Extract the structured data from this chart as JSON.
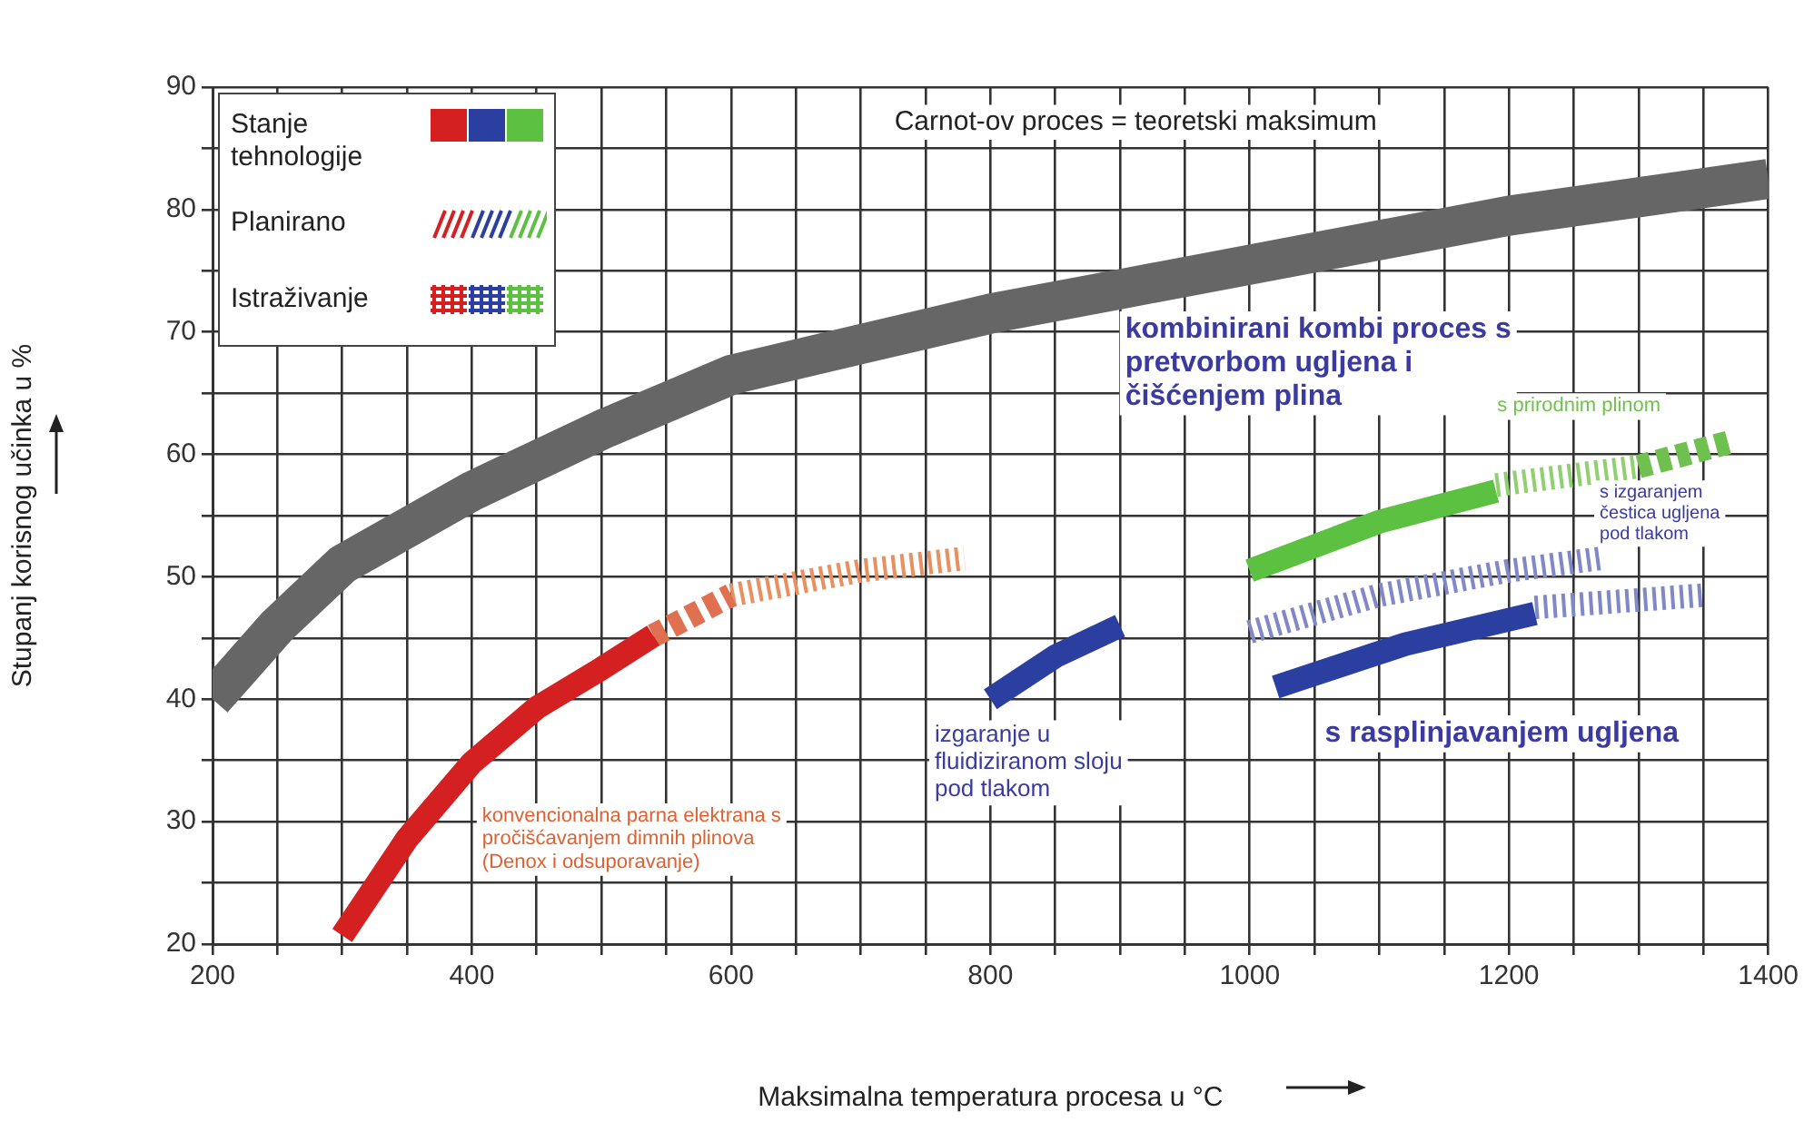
{
  "chart_data": {
    "type": "line",
    "xlabel": "Maksimalna temperatura procesa u °C",
    "ylabel": "Stupanj korisnog učinka u %",
    "xlim": [
      200,
      1400
    ],
    "ylim": [
      20,
      90
    ],
    "xticks": [
      200,
      {
        "value": 250,
        "label": null
      },
      {
        "value": 300,
        "label": null
      },
      {
        "value": 350,
        "label": null
      },
      400,
      {
        "value": 450,
        "label": null
      },
      {
        "value": 500,
        "label": null
      },
      {
        "value": 550,
        "label": null
      },
      600,
      {
        "value": 650,
        "label": null
      },
      {
        "value": 700,
        "label": null
      },
      {
        "value": 750,
        "label": null
      },
      800,
      {
        "value": 850,
        "label": null
      },
      {
        "value": 900,
        "label": null
      },
      {
        "value": 950,
        "label": null
      },
      1000,
      {
        "value": 1050,
        "label": null
      },
      {
        "value": 1100,
        "label": null
      },
      {
        "value": 1150,
        "label": null
      },
      1200,
      {
        "value": 1250,
        "label": null
      },
      {
        "value": 1300,
        "label": null
      },
      {
        "value": 1350,
        "label": null
      },
      1400
    ],
    "yticks": [
      20,
      {
        "value": 25,
        "label": null
      },
      30,
      {
        "value": 35,
        "label": null
      },
      40,
      {
        "value": 45,
        "label": null
      },
      50,
      {
        "value": 55,
        "label": null
      },
      60,
      {
        "value": 65,
        "label": null
      },
      70,
      {
        "value": 75,
        "label": null
      },
      80,
      {
        "value": 85,
        "label": null
      },
      90
    ],
    "grid": true,
    "marker": "none",
    "series": [
      {
        "color": "#666666",
        "line_style": "solid",
        "x": [
          200,
          250,
          300,
          400,
          500,
          600,
          700,
          800,
          900,
          1000,
          1100,
          1200,
          1300,
          1400
        ],
        "values": [
          40,
          46,
          51,
          57,
          62,
          66.5,
          69,
          71.5,
          73.5,
          75.5,
          77.5,
          79.5,
          81,
          82.5
        ]
      },
      {
        "color": "#d42020",
        "line_style": "solid",
        "x": [
          300,
          350,
          400,
          450,
          500,
          540
        ],
        "values": [
          20.7,
          28.6,
          34.8,
          39.3,
          42.5,
          45.2
        ]
      },
      {
        "color": "#e07050",
        "line_style": "dashed",
        "x": [
          540,
          600
        ],
        "values": [
          45.2,
          48.5
        ]
      },
      {
        "color": "#e89060",
        "line_style": "dotted",
        "x": [
          600,
          700,
          780
        ],
        "values": [
          48.5,
          50.5,
          51.5
        ]
      },
      {
        "color": "#2a3fa0",
        "line_style": "solid",
        "x": [
          800,
          850,
          900
        ],
        "values": [
          40,
          43.5,
          46
        ]
      },
      {
        "color": "#5cc040",
        "line_style": "solid",
        "x": [
          1000,
          1100,
          1190
        ],
        "values": [
          50.5,
          54.5,
          57
        ]
      },
      {
        "color": "#90d070",
        "line_style": "dotted",
        "x": [
          1190,
          1300
        ],
        "values": [
          57.5,
          59
        ]
      },
      {
        "color": "#70c050",
        "line_style": "dashed",
        "x": [
          1300,
          1370
        ],
        "values": [
          59,
          61
        ]
      },
      {
        "color": "#8088c8",
        "line_style": "dotted",
        "x": [
          1000,
          1100,
          1200,
          1270
        ],
        "values": [
          45.5,
          48.5,
          50.5,
          51.5
        ]
      },
      {
        "color": "#2a3fa0",
        "line_style": "solid",
        "x": [
          1020,
          1120,
          1220
        ],
        "values": [
          41,
          44.5,
          47
        ]
      },
      {
        "color": "#8088c8",
        "line_style": "dotted",
        "x": [
          1220,
          1350
        ],
        "values": [
          47.5,
          48.5
        ]
      }
    ],
    "annotations": [
      "Carnot-ov proces = teoretski maksimum",
      "kombinirani kombi proces s\npretvorbom ugljena i\nčišćenjem plina",
      "s prirodnim plinom",
      "s izgaranjem\nčestica ugljena\npod tlakom",
      "s rasplinjavanjem ugljena",
      "izgaranje u\nfluidiziranom sloju\npod tlakom",
      "konvencionalna parna elektrana s\npročišćavanjem dimnih plinova\n(Denox i odsuporavanje)",
      "Stanje\ntehnologije",
      "Planirano",
      "Istraživanje"
    ]
  }
}
